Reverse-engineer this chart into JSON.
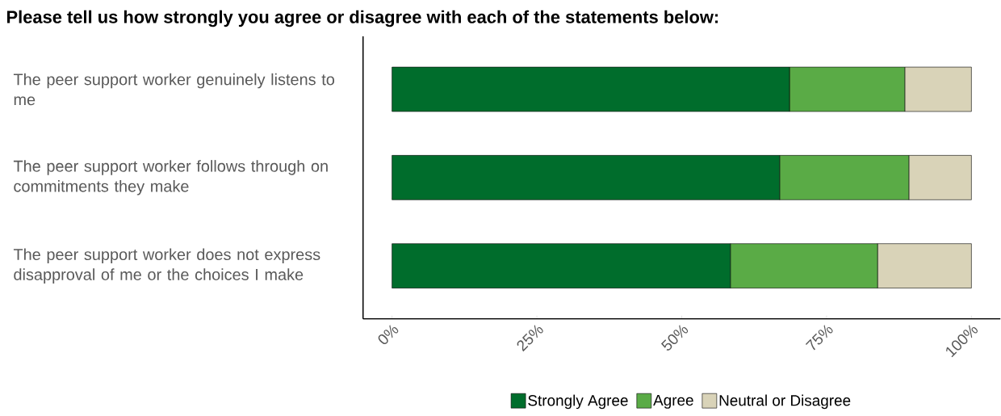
{
  "chart_data": {
    "type": "bar",
    "orientation": "horizontal",
    "stacked": true,
    "title": "Please tell us how strongly you agree or disagree with each of the statements below:",
    "categories": [
      "The peer support worker genuinely listens to me",
      "The peer support worker follows through on commitments they make",
      "The peer support worker does not express disapproval of me or the choices I make"
    ],
    "series": [
      {
        "name": "Strongly Agree",
        "color": "#006d2c",
        "values": [
          68.6,
          66.9,
          58.4
        ]
      },
      {
        "name": "Agree",
        "color": "#5aab46",
        "values": [
          19.9,
          22.3,
          25.4
        ]
      },
      {
        "name": "Neutral or Disagree",
        "color": "#d9d3b8",
        "values": [
          11.5,
          10.8,
          16.2
        ]
      }
    ],
    "xlim": [
      -5,
      105
    ],
    "xticks": [
      {
        "value": 0,
        "label": "0%"
      },
      {
        "value": 25,
        "label": "25%"
      },
      {
        "value": 50,
        "label": "50%"
      },
      {
        "value": 75,
        "label": "75%"
      },
      {
        "value": 100,
        "label": "100%"
      }
    ],
    "legend": "bottom",
    "grid": false
  }
}
